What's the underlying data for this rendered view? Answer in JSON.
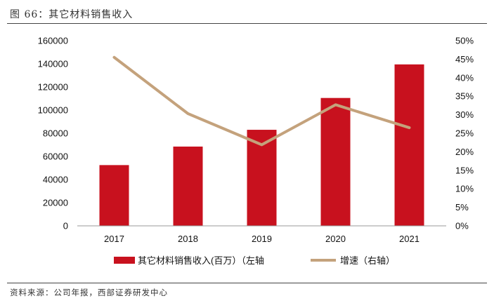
{
  "figure_title": "图 66：其它材料销售收入",
  "source": "资料来源：公司年报，西部证券研发中心",
  "colors": {
    "bar": "#C8111E",
    "line": "#C4A27C",
    "axis": "#999999"
  },
  "chart_data": {
    "type": "bar",
    "categories": [
      "2017",
      "2018",
      "2019",
      "2020",
      "2021"
    ],
    "series": [
      {
        "name": "其它材料销售收入(百万）（左轴",
        "type": "bar",
        "axis": "left",
        "values": [
          52500,
          68500,
          83000,
          110500,
          139500
        ]
      },
      {
        "name": "增速（右轴）",
        "type": "line",
        "axis": "right",
        "values": [
          45.5,
          30.3,
          21.9,
          32.7,
          26.5
        ]
      }
    ],
    "y_left": {
      "min": 0,
      "max": 160000,
      "ticks": [
        "0",
        "20000",
        "40000",
        "60000",
        "80000",
        "100000",
        "120000",
        "140000",
        "160000"
      ]
    },
    "y_right": {
      "min": 0,
      "max": 50,
      "ticks": [
        "0%",
        "5%",
        "10%",
        "15%",
        "20%",
        "25%",
        "30%",
        "35%",
        "40%",
        "45%",
        "50%"
      ]
    },
    "legend_position": "bottom",
    "grid": false
  }
}
